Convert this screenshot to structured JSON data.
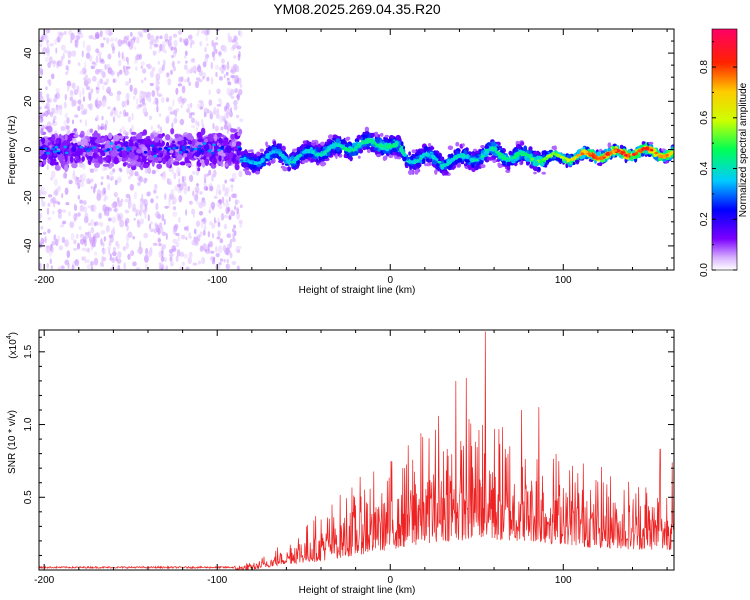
{
  "title": "YM08.2025.269.04.35.R20",
  "chart_data": [
    {
      "type": "heatmap",
      "name": "spectrogram",
      "xlabel": "Height of straight line (km)",
      "ylabel": "Frequency (Hz)",
      "xlim": [
        -203,
        164
      ],
      "ylim": [
        -50,
        50
      ],
      "xticks": [
        -200,
        -100,
        0,
        100
      ],
      "yticks": [
        -40,
        -20,
        0,
        20,
        40
      ],
      "colorbar": {
        "label": "Normalized spectral amplitude",
        "range": [
          0,
          0.95
        ],
        "ticks": [
          0.0,
          0.2,
          0.4,
          0.6,
          0.8
        ]
      },
      "regions": [
        {
          "x_from": -203,
          "x_to": -86,
          "description_value": "noise",
          "peak_amplitude": 0.3,
          "center_freq": 0
        },
        {
          "x_from": -86,
          "x_to": 164,
          "description_value": "signal",
          "peak_amplitude": 0.9,
          "center_freq": 0
        }
      ],
      "trace": {
        "x": [
          -86,
          -75,
          -65,
          -55,
          -45,
          -35,
          -25,
          -15,
          -5,
          5,
          10,
          20,
          30,
          40,
          50,
          60,
          70,
          80,
          90,
          100,
          110,
          120,
          130,
          140,
          150,
          164
        ],
        "freq": [
          -6,
          -4,
          -2,
          -4,
          -1,
          0,
          1,
          2,
          3,
          0,
          -4,
          -3,
          -5,
          -4,
          -3,
          -1,
          -3,
          -3,
          -4,
          -3,
          -3,
          -2,
          -2,
          -1,
          -1,
          -2
        ],
        "amplitude": [
          0.35,
          0.35,
          0.38,
          0.4,
          0.4,
          0.42,
          0.45,
          0.45,
          0.48,
          0.45,
          0.4,
          0.4,
          0.42,
          0.4,
          0.42,
          0.45,
          0.45,
          0.5,
          0.55,
          0.6,
          0.75,
          0.8,
          0.85,
          0.85,
          0.85,
          0.7
        ]
      }
    },
    {
      "type": "line",
      "name": "snr",
      "xlabel": "Height of straight line (km)",
      "ylabel": "SNR (10 * v/v)",
      "multiplier": "(x10",
      "multiplier_exp": "4",
      "multiplier_close": ")",
      "xlim": [
        -203,
        164
      ],
      "ylim": [
        0,
        1.65
      ],
      "xticks": [
        -200,
        -100,
        0,
        100
      ],
      "yticks": [
        0.5,
        1.0,
        1.5
      ],
      "ytick_labels": [
        "0.5",
        "1.0",
        "1.5"
      ],
      "color": "#ee2222",
      "envelope": {
        "x": [
          -203,
          -90,
          -80,
          -70,
          -60,
          -50,
          -40,
          -30,
          -20,
          -10,
          0,
          10,
          20,
          30,
          40,
          50,
          55,
          60,
          70,
          80,
          90,
          100,
          110,
          120,
          130,
          140,
          150,
          164
        ],
        "low": [
          0,
          0,
          0,
          0.02,
          0.04,
          0.05,
          0.06,
          0.08,
          0.1,
          0.12,
          0.14,
          0.16,
          0.18,
          0.2,
          0.2,
          0.22,
          0.22,
          0.2,
          0.2,
          0.2,
          0.18,
          0.18,
          0.16,
          0.15,
          0.15,
          0.14,
          0.14,
          0.14
        ],
        "high": [
          0.03,
          0.03,
          0.06,
          0.12,
          0.22,
          0.3,
          0.42,
          0.52,
          0.62,
          0.7,
          0.78,
          0.88,
          0.98,
          1.02,
          1.05,
          1.1,
          1.12,
          1.05,
          0.98,
          0.92,
          0.9,
          0.82,
          0.78,
          0.72,
          0.68,
          0.66,
          0.64,
          0.6
        ]
      },
      "peaks": [
        {
          "x": 55,
          "y": 1.64
        },
        {
          "x": 38,
          "y": 1.3
        },
        {
          "x": 44,
          "y": 1.32
        },
        {
          "x": 28,
          "y": 1.06
        },
        {
          "x": 76,
          "y": 1.1
        },
        {
          "x": 86,
          "y": 1.12
        },
        {
          "x": 156,
          "y": 0.83
        },
        {
          "x": 163,
          "y": 0.74
        }
      ]
    }
  ]
}
